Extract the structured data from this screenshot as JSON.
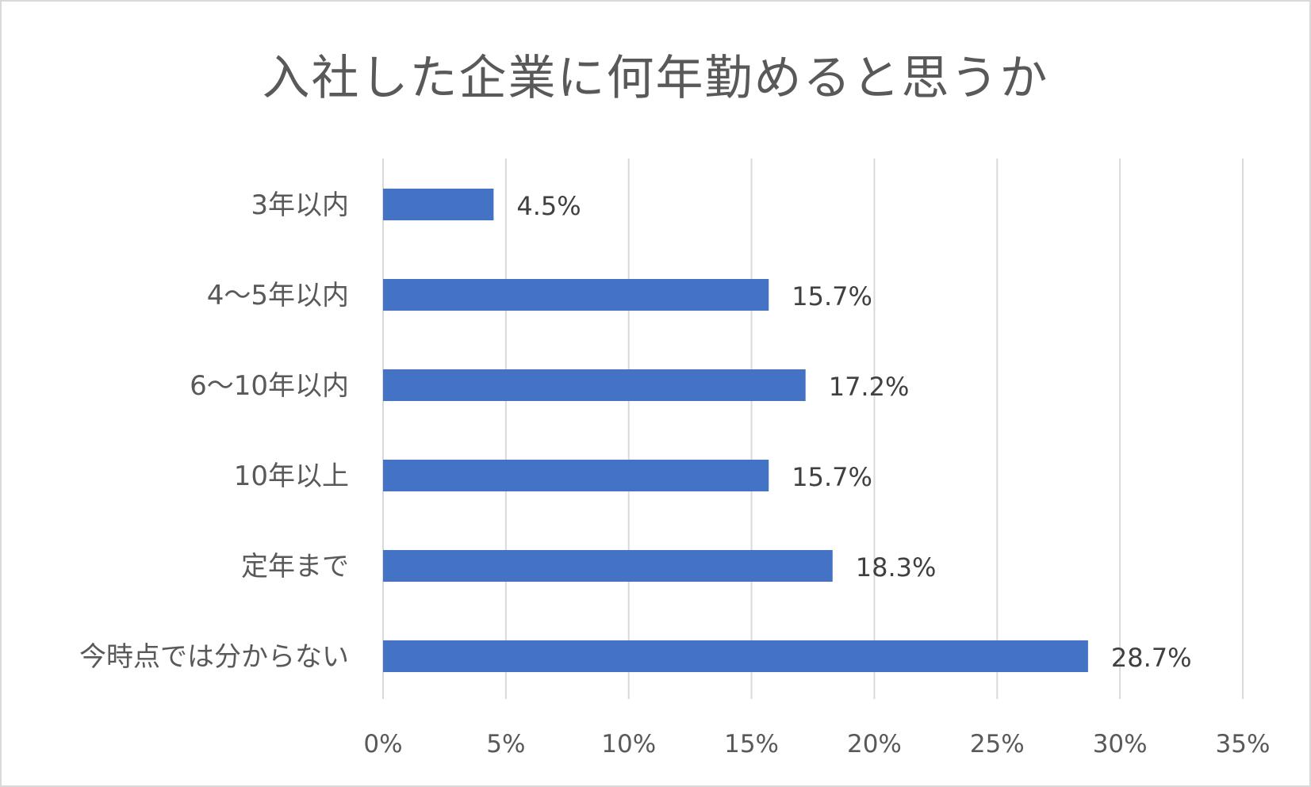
{
  "chart_data": {
    "type": "bar",
    "orientation": "horizontal",
    "title": "入社した企業に何年勤めると思うか",
    "categories": [
      "3年以内",
      "4〜5年以内",
      "6〜10年以内",
      "10年以上",
      "定年まで",
      "今時点では分からない"
    ],
    "values": [
      4.5,
      15.7,
      17.2,
      15.7,
      18.3,
      28.7
    ],
    "data_labels": [
      "4.5%",
      "15.7%",
      "17.2%",
      "15.7%",
      "18.3%",
      "28.7%"
    ],
    "xlim": [
      0,
      35
    ],
    "xticks": [
      0,
      5,
      10,
      15,
      20,
      25,
      30,
      35
    ],
    "xtick_labels": [
      "0%",
      "5%",
      "10%",
      "15%",
      "20%",
      "25%",
      "30%",
      "35%"
    ],
    "grid": true,
    "bar_color": "#4472c4",
    "legend": "none"
  }
}
